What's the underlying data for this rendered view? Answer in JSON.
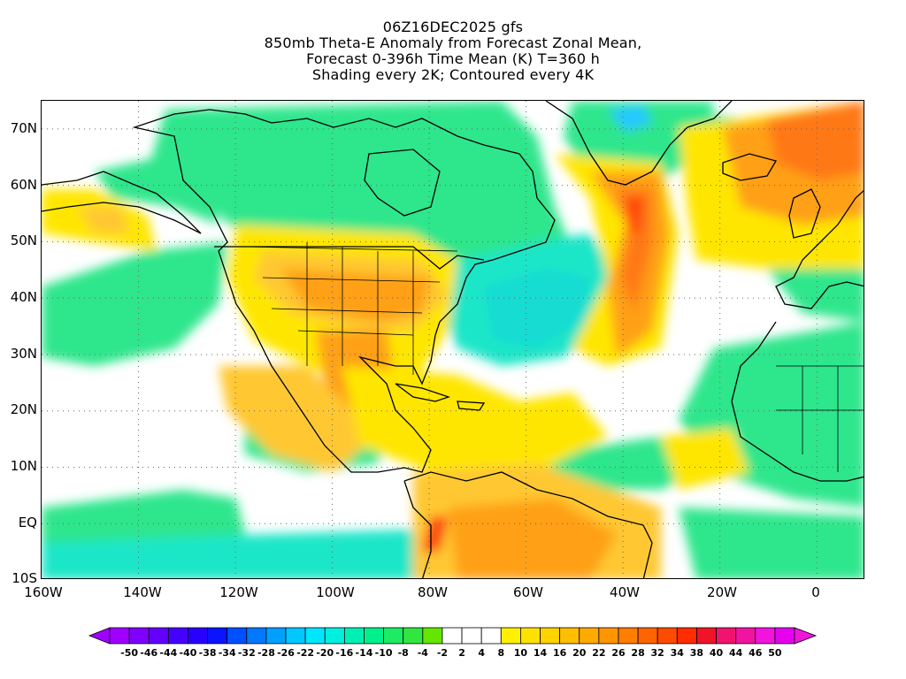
{
  "title": {
    "lines": [
      "06Z16DEC2025 gfs",
      "850mb Theta-E Anomaly from Forecast Zonal Mean,",
      "Forecast 0-396h Time Mean (K) T=360 h",
      "Shading every 2K; Contoured every 4K"
    ]
  },
  "map": {
    "lon_range": [
      -160,
      10
    ],
    "lat_range": [
      -10,
      75
    ],
    "lat_labels": [
      {
        "text": "70N",
        "value": 70
      },
      {
        "text": "60N",
        "value": 60
      },
      {
        "text": "50N",
        "value": 50
      },
      {
        "text": "40N",
        "value": 40
      },
      {
        "text": "30N",
        "value": 30
      },
      {
        "text": "20N",
        "value": 20
      },
      {
        "text": "10N",
        "value": 10
      },
      {
        "text": "EQ",
        "value": 0
      },
      {
        "text": "10S",
        "value": -10
      }
    ],
    "lon_labels": [
      {
        "text": "160W",
        "value": -160
      },
      {
        "text": "140W",
        "value": -140
      },
      {
        "text": "120W",
        "value": -120
      },
      {
        "text": "100W",
        "value": -100
      },
      {
        "text": "80W",
        "value": -80
      },
      {
        "text": "60W",
        "value": -60
      },
      {
        "text": "40W",
        "value": -40
      },
      {
        "text": "20W",
        "value": -20
      },
      {
        "text": "0",
        "value": 0
      }
    ],
    "colors": {
      "green": "#2ee68c",
      "cyan": "#1ee6c8",
      "blue": "#28c8ff",
      "yellow": "#ffe600",
      "lightorange": "#ffc832",
      "orange": "#ffa014",
      "darkorange": "#ff7814",
      "red": "#ff4010",
      "coast": "#000000"
    }
  },
  "colorbar": {
    "labels": [
      "-50",
      "-46",
      "-44",
      "-40",
      "-38",
      "-34",
      "-32",
      "-28",
      "-26",
      "-22",
      "-20",
      "-16",
      "-14",
      "-10",
      "-8",
      "-4",
      "-2",
      "2",
      "4",
      "8",
      "10",
      "14",
      "16",
      "20",
      "22",
      "26",
      "28",
      "32",
      "34",
      "38",
      "40",
      "44",
      "46",
      "50"
    ],
    "colors": [
      "#a000ff",
      "#8000ff",
      "#6400ff",
      "#4600ff",
      "#2800ff",
      "#0a14ff",
      "#0050ff",
      "#0078ff",
      "#00a0ff",
      "#00c8ff",
      "#00e6ff",
      "#00f0e0",
      "#00f0b4",
      "#00f08c",
      "#1eeb64",
      "#32e640",
      "#64e600",
      "#ffffff",
      "#ffffff",
      "#ffffff",
      "#fff000",
      "#ffe100",
      "#ffd200",
      "#ffbe00",
      "#ffaa00",
      "#ff9600",
      "#ff7d00",
      "#ff6400",
      "#ff4b00",
      "#ff2d00",
      "#f01428",
      "#f0146e",
      "#f014a0",
      "#f014dc",
      "#e600f0"
    ],
    "left_arrow_color": "#a000ff",
    "right_arrow_color": "#f014dc"
  }
}
